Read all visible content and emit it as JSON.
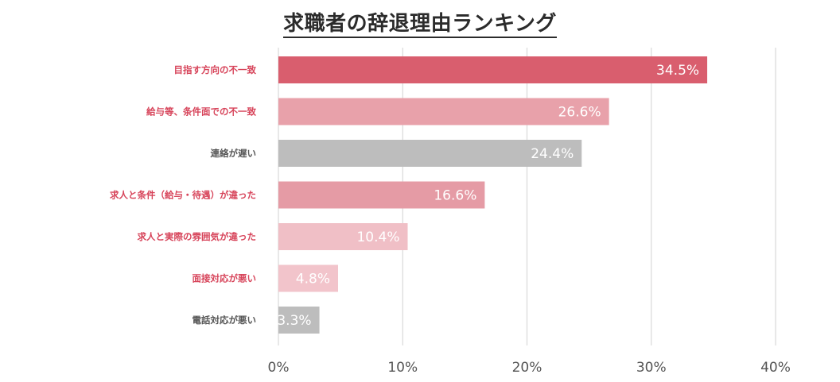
{
  "chart_data": {
    "type": "bar",
    "orientation": "horizontal",
    "title": "求職者の辞退理由ランキング",
    "categories": [
      "目指す方向の不一致",
      "給与等、条件面での不一致",
      "連絡が遅い",
      "求人と条件（給与・待遇）が違った",
      "求人と実際の雰囲気が違った",
      "面接対応が悪い",
      "電話対応が悪い"
    ],
    "values": [
      34.5,
      26.6,
      24.4,
      16.6,
      10.4,
      4.8,
      3.3
    ],
    "value_labels": [
      "34.5%",
      "26.6%",
      "24.4%",
      "16.6%",
      "10.4%",
      "4.8%",
      "3.3%"
    ],
    "bar_colors": [
      "#d95e6e",
      "#e8a1aa",
      "#bdbdbd",
      "#e59ba5",
      "#f0bfc6",
      "#f2c4cb",
      "#bdbdbd"
    ],
    "category_label_colors": [
      "#d7445a",
      "#d7445a",
      "#555555",
      "#d7445a",
      "#d7445a",
      "#d7445a",
      "#555555"
    ],
    "xlim": [
      0,
      40
    ],
    "xticks": [
      0,
      10,
      20,
      30,
      40
    ],
    "xtick_labels": [
      "0%",
      "10%",
      "20%",
      "30%",
      "40%"
    ],
    "xlabel": "",
    "ylabel": "",
    "grid": "vertical",
    "legend": "none"
  }
}
